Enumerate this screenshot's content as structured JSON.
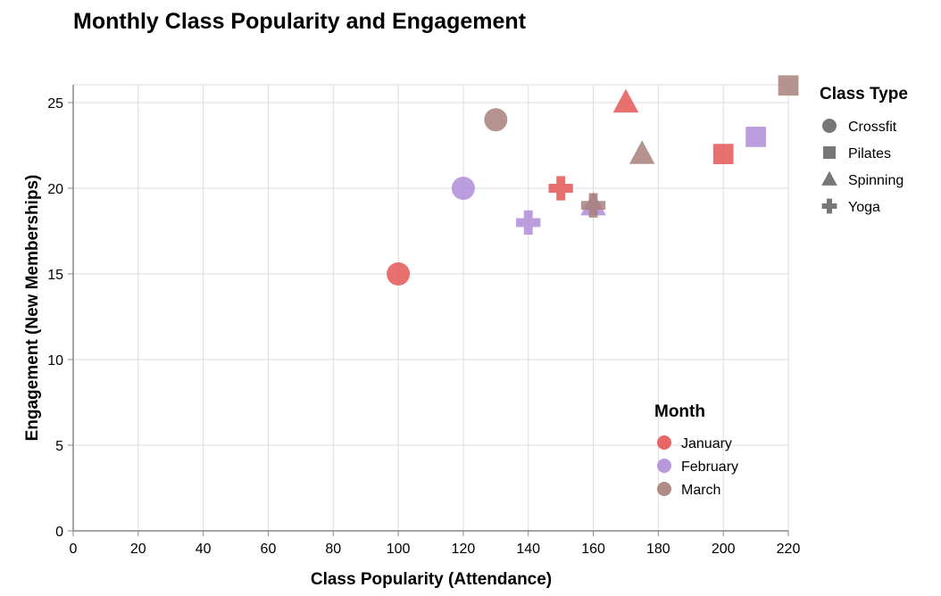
{
  "chart_data": {
    "type": "scatter",
    "title": "Monthly Class Popularity and Engagement",
    "xlabel": "Class Popularity (Attendance)",
    "ylabel": "Engagement (New Memberships)",
    "xlim": [
      0,
      220
    ],
    "ylim": [
      0,
      25
    ],
    "xticks": [
      0,
      20,
      40,
      60,
      80,
      100,
      120,
      140,
      160,
      180,
      200,
      220
    ],
    "yticks": [
      0,
      5,
      10,
      15,
      20,
      25
    ],
    "grid": true,
    "color_legend": {
      "title": "Month",
      "placement": "bottom-right",
      "entries": [
        {
          "label": "January",
          "color": "#e45756"
        },
        {
          "label": "February",
          "color": "#b08cd8"
        },
        {
          "label": "March",
          "color": "#a8807a"
        }
      ]
    },
    "shape_legend": {
      "title": "Class Type",
      "placement": "top-right",
      "entries": [
        {
          "label": "Crossfit",
          "shape": "circle"
        },
        {
          "label": "Pilates",
          "shape": "square"
        },
        {
          "label": "Spinning",
          "shape": "triangle"
        },
        {
          "label": "Yoga",
          "shape": "cross"
        }
      ]
    },
    "points": [
      {
        "month": "January",
        "class": "Crossfit",
        "x": 100,
        "y": 15
      },
      {
        "month": "January",
        "class": "Pilates",
        "x": 200,
        "y": 22
      },
      {
        "month": "January",
        "class": "Spinning",
        "x": 170,
        "y": 25
      },
      {
        "month": "January",
        "class": "Yoga",
        "x": 150,
        "y": 20
      },
      {
        "month": "February",
        "class": "Crossfit",
        "x": 120,
        "y": 20
      },
      {
        "month": "February",
        "class": "Pilates",
        "x": 210,
        "y": 23
      },
      {
        "month": "February",
        "class": "Spinning",
        "x": 160,
        "y": 19
      },
      {
        "month": "February",
        "class": "Yoga",
        "x": 140,
        "y": 18
      },
      {
        "month": "March",
        "class": "Crossfit",
        "x": 130,
        "y": 24
      },
      {
        "month": "March",
        "class": "Pilates",
        "x": 220,
        "y": 26
      },
      {
        "month": "March",
        "class": "Spinning",
        "x": 175,
        "y": 22
      },
      {
        "month": "March",
        "class": "Yoga",
        "x": 160,
        "y": 19
      }
    ]
  }
}
